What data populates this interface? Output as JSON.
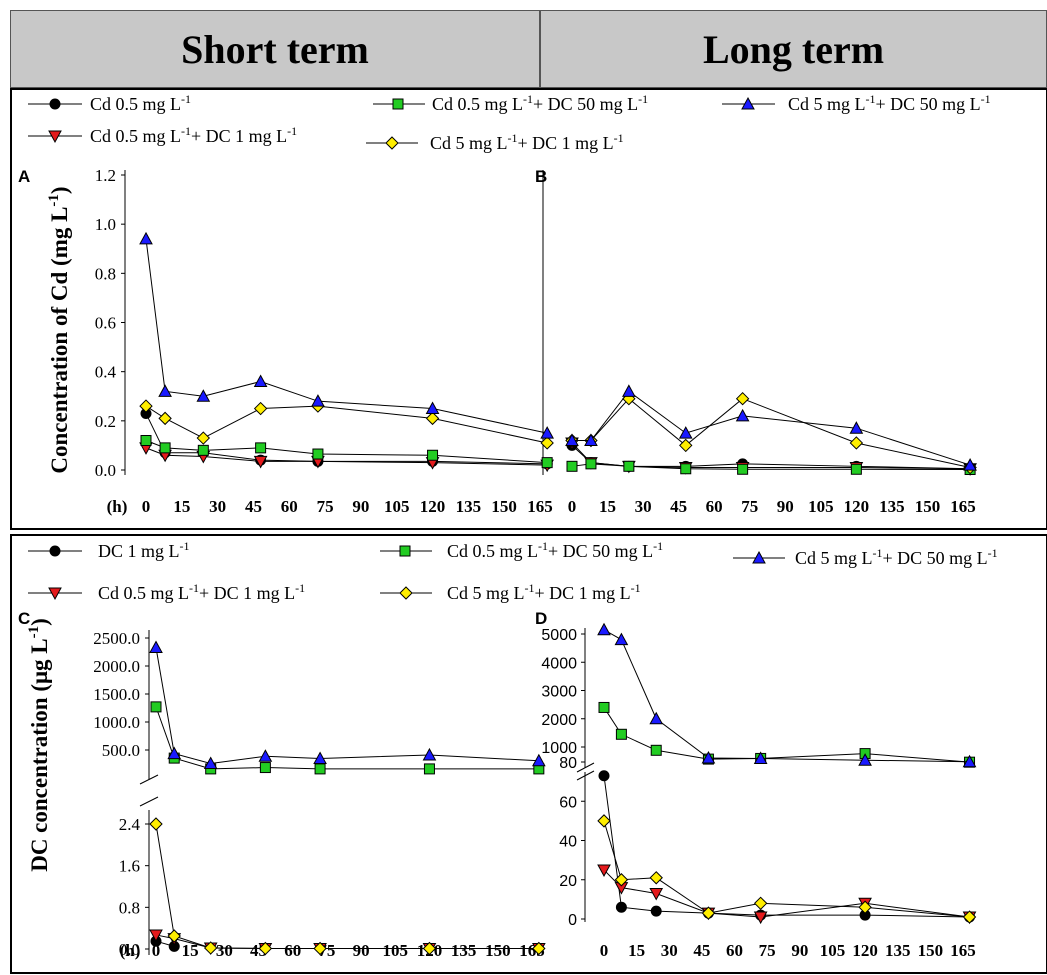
{
  "header": {
    "left": "Short term",
    "right": "Long term"
  },
  "chart_data": [
    {
      "panel": "A",
      "type": "line",
      "ylabel": "Concentration of Cd (mg L-1)",
      "xunit": "(h)",
      "ylim": [
        0,
        1.2
      ],
      "yticks": [
        "0.0",
        "0.2",
        "0.4",
        "0.6",
        "0.8",
        "1.0",
        "1.2"
      ],
      "xticks": [
        "0",
        "15",
        "30",
        "45",
        "60",
        "75",
        "90",
        "105",
        "120",
        "135",
        "150",
        "165"
      ],
      "series": [
        {
          "name": "Cd 0.5 mg L-1",
          "x": [
            0,
            8,
            24,
            48,
            72,
            120,
            168
          ],
          "y": [
            0.23,
            0.07,
            0.07,
            0.04,
            0.035,
            0.035,
            0.025
          ]
        },
        {
          "name": "Cd 0.5 mg L-1+ DC 1 mg L-1",
          "x": [
            0,
            8,
            24,
            48,
            72,
            120,
            168
          ],
          "y": [
            0.09,
            0.06,
            0.055,
            0.035,
            0.035,
            0.03,
            0.02
          ]
        },
        {
          "name": "Cd 0.5 mg L-1+ DC 50 mg L-1",
          "x": [
            0,
            8,
            24,
            48,
            72,
            120,
            168
          ],
          "y": [
            0.12,
            0.09,
            0.08,
            0.09,
            0.065,
            0.06,
            0.03
          ]
        },
        {
          "name": "Cd 5 mg L-1+ DC 1 mg L-1",
          "x": [
            0,
            8,
            24,
            48,
            72,
            120,
            168
          ],
          "y": [
            0.26,
            0.21,
            0.13,
            0.25,
            0.26,
            0.21,
            0.11
          ]
        },
        {
          "name": "Cd 5 mg L-1+ DC 50 mg L-1",
          "x": [
            0,
            8,
            24,
            48,
            72,
            120,
            168
          ],
          "y": [
            0.94,
            0.32,
            0.3,
            0.36,
            0.28,
            0.25,
            0.15
          ]
        }
      ]
    },
    {
      "panel": "B",
      "type": "line",
      "xticks": [
        "0",
        "15",
        "30",
        "45",
        "60",
        "75",
        "90",
        "105",
        "120",
        "135",
        "150",
        "165"
      ],
      "ylim": [
        0,
        1.2
      ],
      "series": [
        {
          "name": "Cd 0.5 mg L-1",
          "x": [
            0,
            8,
            24,
            48,
            72,
            120,
            168
          ],
          "y": [
            0.1,
            0.03,
            0.015,
            0.015,
            0.025,
            0.015,
            0.005
          ]
        },
        {
          "name": "Cd 0.5 mg L-1+ DC 1 mg L-1",
          "x": [
            0,
            8,
            24,
            48,
            72,
            120,
            168
          ],
          "y": [
            0.11,
            0.03,
            0.015,
            0.01,
            0.01,
            0.01,
            0.005
          ]
        },
        {
          "name": "Cd 0.5 mg L-1+ DC 50 mg L-1",
          "x": [
            0,
            8,
            24,
            48,
            72,
            120,
            168
          ],
          "y": [
            0.015,
            0.025,
            0.015,
            0.005,
            0.003,
            0.003,
            0.002
          ]
        },
        {
          "name": "Cd 5 mg L-1+ DC 1 mg L-1",
          "x": [
            0,
            8,
            24,
            48,
            72,
            120,
            168
          ],
          "y": [
            0.12,
            0.12,
            0.29,
            0.1,
            0.29,
            0.11,
            0.01
          ]
        },
        {
          "name": "Cd 5 mg L-1+ DC 50 mg L-1",
          "x": [
            0,
            8,
            24,
            48,
            72,
            120,
            168
          ],
          "y": [
            0.12,
            0.12,
            0.32,
            0.15,
            0.22,
            0.17,
            0.02
          ]
        }
      ]
    },
    {
      "panel": "C",
      "type": "line",
      "ylabel": "DC concentration (μg L-1)",
      "xunit": "(h)",
      "broken_axis": true,
      "upper_yticks": [
        "500.0",
        "1000.0",
        "1500.0",
        "2000.0",
        "2500.0"
      ],
      "lower_yticks": [
        "0.0",
        "0.8",
        "1.6",
        "2.4"
      ],
      "xticks": [
        "0",
        "15",
        "30",
        "45",
        "60",
        "75",
        "90",
        "105",
        "120",
        "135",
        "150",
        "165"
      ],
      "series": [
        {
          "name": "DC 1 mg L-1",
          "x": [
            0,
            8
          ],
          "y": [
            0.15,
            0.05
          ]
        },
        {
          "name": "Cd 0.5 mg L-1+ DC 1 mg L-1",
          "x": [
            0,
            8,
            24,
            48,
            72,
            120,
            168
          ],
          "y": [
            0.27,
            0.2,
            0.02,
            0.01,
            0.01,
            0.01,
            0.01
          ]
        },
        {
          "name": "Cd 0.5 mg L-1+ DC 50 mg L-1",
          "x": [
            0,
            8,
            24,
            48,
            72,
            120,
            168
          ],
          "y": [
            1270,
            320,
            80,
            110,
            80,
            80,
            80
          ]
        },
        {
          "name": "Cd 5 mg L-1+ DC 1 mg L-1",
          "x": [
            0,
            8,
            24,
            48,
            72,
            120,
            168
          ],
          "y": [
            2.4,
            0.25,
            0.02,
            0.01,
            0.01,
            0.01,
            0.01
          ]
        },
        {
          "name": "Cd 5 mg L-1+ DC 50 mg L-1",
          "x": [
            0,
            8,
            24,
            48,
            72,
            120,
            168
          ],
          "y": [
            2330,
            420,
            200,
            360,
            310,
            390,
            260
          ]
        }
      ]
    },
    {
      "panel": "D",
      "type": "line",
      "broken_axis": true,
      "upper_yticks": [
        "1000",
        "2000",
        "3000",
        "4000",
        "5000"
      ],
      "lower_yticks": [
        "0",
        "20",
        "40",
        "60",
        "80"
      ],
      "xticks": [
        "0",
        "15",
        "30",
        "45",
        "60",
        "75",
        "90",
        "105",
        "120",
        "135",
        "150",
        "165"
      ],
      "series": [
        {
          "name": "DC 1 mg L-1",
          "x": [
            0,
            8,
            24,
            48,
            72,
            120,
            168
          ],
          "y": [
            73,
            6,
            4,
            3,
            2,
            2,
            1
          ]
        },
        {
          "name": "Cd 0.5 mg L-1+ DC 1 mg L-1",
          "x": [
            0,
            8,
            24,
            48,
            72,
            120,
            168
          ],
          "y": [
            25,
            16,
            13,
            3,
            1,
            8,
            1
          ]
        },
        {
          "name": "Cd 0.5 mg L-1+ DC 50 mg L-1",
          "x": [
            0,
            8,
            24,
            48,
            72,
            120,
            168
          ],
          "y": [
            2400,
            1450,
            850,
            450,
            480,
            700,
            310
          ]
        },
        {
          "name": "Cd 5 mg L-1+ DC 1 mg L-1",
          "x": [
            0,
            8,
            24,
            48,
            72,
            120,
            168
          ],
          "y": [
            50,
            20,
            21,
            3,
            8,
            6,
            1
          ]
        },
        {
          "name": "Cd 5 mg L-1+ DC 50 mg L-1",
          "x": [
            0,
            8,
            24,
            48,
            72,
            120,
            168
          ],
          "y": [
            5150,
            4800,
            2000,
            500,
            480,
            400,
            330
          ]
        }
      ]
    }
  ],
  "legend_top": {
    "items": [
      {
        "label": "Cd 0.5 mg L-1",
        "sup1": "-1",
        "base": "Cd 0.5 mg L",
        "marker": "circle"
      },
      {
        "label": "Cd 0.5 mg L-1+ DC 50 mg L-1",
        "marker": "square"
      },
      {
        "label": "Cd 5 mg L-1+ DC 50 mg L-1",
        "marker": "triangle"
      },
      {
        "label": "Cd 0.5 mg L-1+ DC 1 mg L-1",
        "marker": "triangle-down"
      },
      {
        "label": "Cd 5 mg L-1+ DC 1 mg L-1",
        "marker": "diamond"
      }
    ]
  },
  "legend_bottom": {
    "items": [
      {
        "label": "DC 1 mg L-1",
        "marker": "circle"
      },
      {
        "label": "Cd 0.5 mg L-1+ DC 50 mg L-1",
        "marker": "square"
      },
      {
        "label": "Cd 5 mg L-1+ DC 50 mg L-1",
        "marker": "triangle"
      },
      {
        "label": "Cd 0.5 mg L-1+ DC 1 mg L-1",
        "marker": "triangle-down"
      },
      {
        "label": "Cd 5 mg L-1+ DC 1 mg L-1",
        "marker": "diamond"
      }
    ]
  },
  "colors": {
    "circle": "#000000",
    "triangle-down": "#e41a1c",
    "square": "#22cc22",
    "diamond": "#ffee00",
    "triangle": "#1a1aff"
  }
}
